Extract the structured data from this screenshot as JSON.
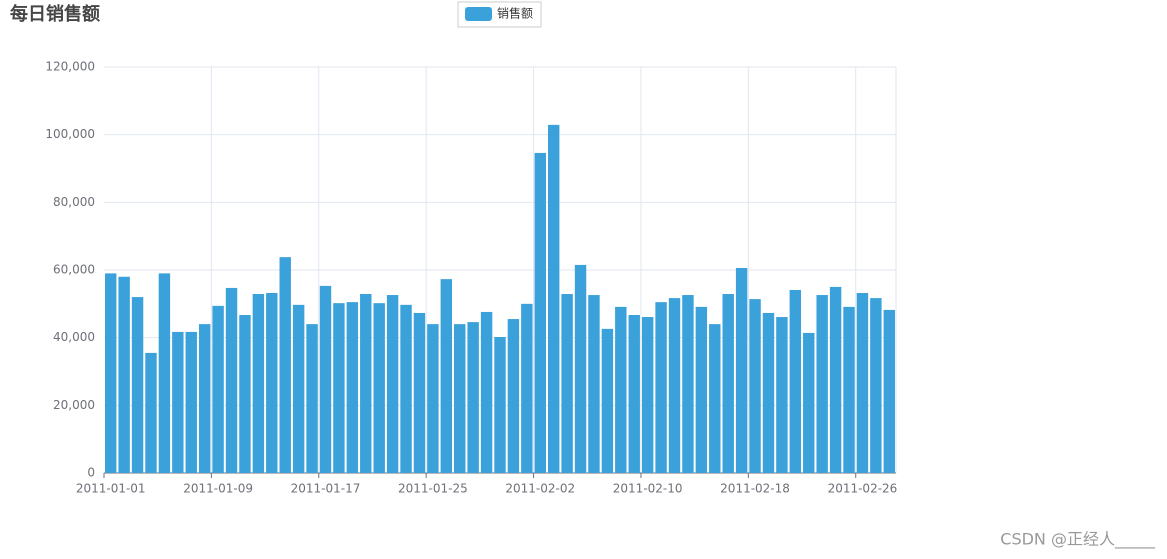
{
  "chart_data": {
    "type": "bar",
    "title": "每日销售额",
    "categories": [
      "2011-01-01",
      null,
      null,
      null,
      null,
      null,
      null,
      null,
      "2011-01-09",
      null,
      null,
      null,
      null,
      null,
      null,
      null,
      "2011-01-17",
      null,
      null,
      null,
      null,
      null,
      null,
      null,
      "2011-01-25",
      null,
      null,
      null,
      null,
      null,
      null,
      null,
      "2011-02-02",
      null,
      null,
      null,
      null,
      null,
      null,
      null,
      "2011-02-10",
      null,
      null,
      null,
      null,
      null,
      null,
      null,
      "2011-02-18",
      null,
      null,
      null,
      null,
      null,
      null,
      null,
      "2011-02-26",
      null,
      null
    ],
    "series": [
      {
        "name": "销售额",
        "color": "#3ba1da",
        "values": [
          59000,
          58000,
          52000,
          35500,
          59000,
          41700,
          41700,
          44000,
          49400,
          54700,
          46700,
          52900,
          53200,
          63800,
          49700,
          44000,
          55300,
          50200,
          50500,
          52900,
          50200,
          52600,
          49700,
          47300,
          44000,
          57300,
          44000,
          44600,
          47600,
          40200,
          45500,
          50000,
          94600,
          102900,
          52900,
          61500,
          52600,
          42600,
          49100,
          46700,
          46100,
          50500,
          51700,
          52600,
          49100,
          44000,
          52900,
          60600,
          51400,
          47300,
          46100,
          54100,
          41400,
          52600,
          55000,
          49100,
          53200,
          51700,
          48200
        ]
      }
    ],
    "ylim": [
      0,
      120000
    ],
    "yticks": [
      0,
      {
        "value": 20000,
        "label": "20,000"
      },
      {
        "value": 40000,
        "label": "40,000"
      },
      {
        "value": 60000,
        "label": "60,000"
      },
      {
        "value": 80000,
        "label": "80,000"
      },
      {
        "value": 100000,
        "label": "100,000"
      },
      {
        "value": 120000,
        "label": "120,000"
      }
    ],
    "grid": true
  },
  "watermark": "CSDN @正经人_____"
}
